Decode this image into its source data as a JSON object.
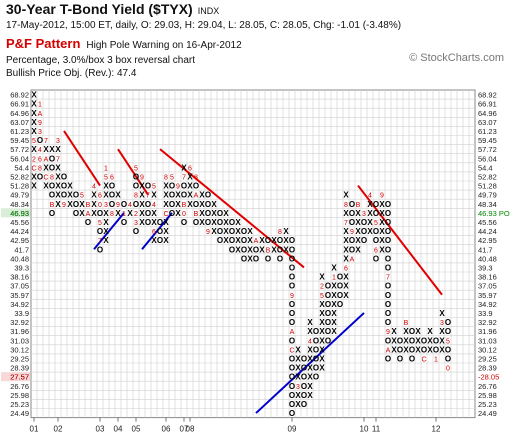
{
  "header": {
    "title": "30-Year T-Bond Yield ($TYX)",
    "symbol_type": "INDX",
    "quote": "17-May-2012, 15:00 ET, daily, O: 29.03, H: 29.04, L: 28.05, C: 28.05, Chg: -1.01 (-3.48%)",
    "pattern_label": "P&F Pattern",
    "pattern_text": "High Pole Warning on 16-Apr-2012",
    "settings": "Percentage, 3.0%/box 3 box reversal chart",
    "objective": "Bullish Price Obj. (Rev.): 47.4",
    "logo": "© StockCharts.com"
  },
  "chart_data": {
    "type": "point-and-figure",
    "box_size": "3.0%",
    "reversal": 3,
    "y_levels": [
      "68.92",
      "66.91",
      "64.96",
      "63.07",
      "61.23",
      "59.45",
      "57.72",
      "56.04",
      "54.4",
      "52.82",
      "51.28",
      "49.79",
      "48.34",
      "46.93",
      "45.56",
      "44.24",
      "42.95",
      "41.7",
      "40.48",
      "39.3",
      "38.16",
      "37.05",
      "35.97",
      "34.92",
      "33.9",
      "32.92",
      "31.96",
      "31.03",
      "30.12",
      "29.25",
      "28.39",
      "27.57",
      "26.76",
      "25.98",
      "25.23",
      "24.49"
    ],
    "y_labels_left": [
      "68.92",
      "66.91",
      "64.96",
      "63.07",
      "61.23",
      "59.45",
      "57.72",
      "56.04",
      "54.4",
      "52.82",
      "51.28",
      "49.79",
      "48.34",
      "46.93",
      "45.56",
      "44.24",
      "42.95",
      "41.7",
      "40.48",
      "39.3",
      "38.16",
      "37.05",
      "35.97",
      "34.92",
      "33.9",
      "32.92",
      "31.96",
      "31.03",
      "30.12",
      "29.25",
      "28.39",
      "27.57",
      "26.76",
      "25.98",
      "25.23",
      "24.49"
    ],
    "y_labels_right": [
      "68.92",
      "66.91",
      "64.96",
      "63.07",
      "61.23",
      "59.45",
      "57.72",
      "56.04",
      "54.4",
      "52.82",
      "51.28",
      "49.79",
      "48.34",
      "",
      "45.56",
      "44.24",
      "42.95",
      "41.7",
      "40.48",
      "39.3",
      "38.16",
      "37.05",
      "35.97",
      "34.92",
      "33.9",
      "32.92",
      "31.96",
      "31.03",
      "30.12",
      "29.25",
      "28.39",
      "",
      "26.76",
      "25.98",
      "25.23",
      "24.49"
    ],
    "right_markers": [
      {
        "label": "46.93 PO",
        "level": 13,
        "color": "#008800"
      },
      {
        "label": "-28.05",
        "level": 31,
        "color": "#cc0000"
      }
    ],
    "left_highlights": [
      {
        "level": 13,
        "color": "#008800"
      },
      {
        "level": 31,
        "color": "#cc0000"
      }
    ],
    "x_labels": [
      {
        "label": "01",
        "col": 0
      },
      {
        "label": "02",
        "col": 4
      },
      {
        "label": "03",
        "col": 11
      },
      {
        "label": "04",
        "col": 14
      },
      {
        "label": "05",
        "col": 17
      },
      {
        "label": "06",
        "col": 22
      },
      {
        "label": "07",
        "col": 25
      },
      {
        "label": "08",
        "col": 26
      },
      {
        "label": "09",
        "col": 43
      },
      {
        "label": "10",
        "col": 55
      },
      {
        "label": "11",
        "col": 57
      },
      {
        "label": "12",
        "col": 67
      }
    ],
    "columns": [
      {
        "type": "X",
        "top": 0,
        "bottom": 10,
        "marks": {
          "5": "5",
          "7": "2",
          "8": "C"
        }
      },
      {
        "type": "O",
        "top": 1,
        "bottom": 9,
        "marks": {
          "1": "1",
          "2": "A",
          "3": "9",
          "4": "3",
          "6": "4",
          "7": "6",
          "8": "8"
        }
      },
      {
        "type": "X",
        "top": 5,
        "bottom": 10,
        "marks": {
          "5": "7",
          "7": "A",
          "9": "C"
        }
      },
      {
        "type": "O",
        "top": 6,
        "bottom": 13,
        "marks": {
          "6": "X",
          "9": "8",
          "12": "B"
        }
      },
      {
        "type": "X",
        "top": 5,
        "bottom": 12,
        "marks": {
          "5": "3",
          "7": "7"
        }
      },
      {
        "type": "O",
        "top": 9,
        "bottom": 12,
        "marks": {
          "12": "9"
        }
      },
      {
        "type": "X",
        "top": 10,
        "bottom": 12,
        "marks": {}
      },
      {
        "type": "O",
        "top": 11,
        "bottom": 13,
        "marks": {}
      },
      {
        "type": "X",
        "top": 11,
        "bottom": 13,
        "marks": {
          "11": "5"
        }
      },
      {
        "type": "O",
        "top": 12,
        "bottom": 14,
        "marks": {
          "13": "A",
          "12": "B"
        }
      },
      {
        "type": "X",
        "top": 10,
        "bottom": 13,
        "marks": {
          "10": "4"
        }
      },
      {
        "type": "O",
        "top": 11,
        "bottom": 17,
        "marks": {
          "11": "6",
          "12": "0",
          "14": "5",
          "16": "7"
        }
      },
      {
        "type": "X",
        "top": 8,
        "bottom": 16,
        "marks": {
          "8": "1",
          "9": "5",
          "12": "3"
        }
      },
      {
        "type": "O",
        "top": 9,
        "bottom": 13,
        "marks": {
          "9": "6",
          "13": "8"
        }
      },
      {
        "type": "X",
        "top": 11,
        "bottom": 13,
        "marks": {
          "12": "9"
        }
      },
      {
        "type": "O",
        "top": 12,
        "bottom": 14,
        "marks": {
          "13": "1"
        }
      },
      {
        "type": "X",
        "top": 12,
        "bottom": 13,
        "marks": {
          "12": "4"
        }
      },
      {
        "type": "O",
        "top": 8,
        "bottom": 15,
        "marks": {
          "8": "5",
          "11": "8",
          "13": "2",
          "14": "3"
        }
      },
      {
        "type": "X",
        "top": 9,
        "bottom": 14,
        "marks": {
          "9": "9"
        }
      },
      {
        "type": "O",
        "top": 10,
        "bottom": 14,
        "marks": {
          "11": "7"
        }
      },
      {
        "type": "X",
        "top": 10,
        "bottom": 16,
        "marks": {
          "10": "5",
          "12": "4",
          "15": "6"
        }
      },
      {
        "type": "O",
        "top": 14,
        "bottom": 16,
        "marks": {}
      },
      {
        "type": "X",
        "top": 9,
        "bottom": 16,
        "marks": {
          "9": "8",
          "13": "C"
        }
      },
      {
        "type": "O",
        "top": 9,
        "bottom": 13,
        "marks": {
          "9": "5"
        }
      },
      {
        "type": "X",
        "top": 10,
        "bottom": 13,
        "marks": {
          "10": "9"
        }
      },
      {
        "type": "O",
        "top": 8,
        "bottom": 14,
        "marks": {
          "8": "X",
          "9": "7",
          "12": "B",
          "13": "0"
        }
      },
      {
        "type": "X",
        "top": 8,
        "bottom": 12,
        "marks": {
          "8": "6"
        }
      },
      {
        "type": "O",
        "top": 9,
        "bottom": 14,
        "marks": {
          "9": "8",
          "11": "A",
          "13": "B"
        }
      },
      {
        "type": "X",
        "top": 11,
        "bottom": 14,
        "marks": {}
      },
      {
        "type": "O",
        "top": 11,
        "bottom": 15,
        "marks": {
          "15": "9"
        }
      },
      {
        "type": "X",
        "top": 12,
        "bottom": 15,
        "marks": {}
      },
      {
        "type": "O",
        "top": 13,
        "bottom": 16,
        "marks": {}
      },
      {
        "type": "X",
        "top": 13,
        "bottom": 16,
        "marks": {}
      },
      {
        "type": "O",
        "top": 14,
        "bottom": 17,
        "marks": {}
      },
      {
        "type": "X",
        "top": 14,
        "bottom": 17,
        "marks": {}
      },
      {
        "type": "O",
        "top": 15,
        "bottom": 18,
        "marks": {}
      },
      {
        "type": "X",
        "top": 15,
        "bottom": 18,
        "marks": {}
      },
      {
        "type": "O",
        "top": 16,
        "bottom": 18,
        "marks": {
          "16": "A"
        }
      },
      {
        "type": "X",
        "top": 16,
        "bottom": 17,
        "marks": {}
      },
      {
        "type": "O",
        "top": 16,
        "bottom": 18,
        "marks": {
          "17": "B"
        }
      },
      {
        "type": "X",
        "top": 16,
        "bottom": 17,
        "marks": {}
      },
      {
        "type": "O",
        "top": 15,
        "bottom": 18,
        "marks": {
          "15": "8"
        }
      },
      {
        "type": "X",
        "top": 15,
        "bottom": 17,
        "marks": {}
      },
      {
        "type": "O",
        "top": 16,
        "bottom": 35,
        "marks": {
          "22": "9",
          "26": "A",
          "28": "C"
        }
      },
      {
        "type": "X",
        "top": 28,
        "bottom": 34,
        "marks": {
          "32": "3"
        }
      },
      {
        "type": "O",
        "top": 29,
        "bottom": 34,
        "marks": {}
      },
      {
        "type": "X",
        "top": 25,
        "bottom": 33,
        "marks": {
          "27": "4"
        }
      },
      {
        "type": "O",
        "top": 26,
        "bottom": 31,
        "marks": {}
      },
      {
        "type": "X",
        "top": 20,
        "bottom": 30,
        "marks": {
          "21": "2",
          "22": "5"
        }
      },
      {
        "type": "O",
        "top": 21,
        "bottom": 27,
        "marks": {}
      },
      {
        "type": "X",
        "top": 19,
        "bottom": 26,
        "marks": {
          "20": "1"
        }
      },
      {
        "type": "O",
        "top": 20,
        "bottom": 23,
        "marks": {}
      },
      {
        "type": "X",
        "top": 11,
        "bottom": 22,
        "marks": {
          "19": "6",
          "14": "7",
          "12": "8"
        }
      },
      {
        "type": "O",
        "top": 12,
        "bottom": 18,
        "marks": {
          "18": "A",
          "15": "9"
        }
      },
      {
        "type": "X",
        "top": 12,
        "bottom": 17,
        "marks": {
          "12": "B"
        }
      },
      {
        "type": "O",
        "top": 13,
        "bottom": 16,
        "marks": {
          "13": "3"
        }
      },
      {
        "type": "X",
        "top": 11,
        "bottom": 15,
        "marks": {
          "11": "4"
        }
      },
      {
        "type": "O",
        "top": 12,
        "bottom": 18,
        "marks": {
          "14": "5",
          "17": "6"
        }
      },
      {
        "type": "X",
        "top": 11,
        "bottom": 17,
        "marks": {
          "11": "9"
        }
      },
      {
        "type": "O",
        "top": 12,
        "bottom": 29,
        "marks": {
          "20": "7",
          "26": "9",
          "28": "A"
        }
      },
      {
        "type": "X",
        "top": 26,
        "bottom": 28,
        "marks": {}
      },
      {
        "type": "O",
        "top": 27,
        "bottom": 29,
        "marks": {}
      },
      {
        "type": "X",
        "top": 25,
        "bottom": 28,
        "marks": {
          "25": "B"
        }
      },
      {
        "type": "O",
        "top": 26,
        "bottom": 29,
        "marks": {}
      },
      {
        "type": "X",
        "top": 26,
        "bottom": 28,
        "marks": {}
      },
      {
        "type": "O",
        "top": 27,
        "bottom": 29,
        "marks": {
          "29": "C"
        }
      },
      {
        "type": "X",
        "top": 26,
        "bottom": 28,
        "marks": {}
      },
      {
        "type": "O",
        "top": 27,
        "bottom": 29,
        "marks": {
          "29": "1"
        }
      },
      {
        "type": "X",
        "top": 24,
        "bottom": 28,
        "marks": {
          "25": "3"
        }
      },
      {
        "type": "O",
        "top": 25,
        "bottom": 30,
        "marks": {
          "27": "5",
          "30": "0"
        }
      }
    ],
    "trend_lines": [
      {
        "type": "resistance",
        "color": "#e00000",
        "from": [
          5,
          4
        ],
        "to": [
          11,
          10
        ]
      },
      {
        "type": "resistance",
        "color": "#e00000",
        "from": [
          14,
          6
        ],
        "to": [
          19,
          11
        ]
      },
      {
        "type": "resistance",
        "color": "#e00000",
        "from": [
          21,
          6
        ],
        "to": [
          45,
          19
        ]
      },
      {
        "type": "resistance",
        "color": "#e00000",
        "from": [
          54,
          10
        ],
        "to": [
          68,
          22
        ]
      },
      {
        "type": "support",
        "color": "#0000cc",
        "from": [
          10,
          17
        ],
        "to": [
          15,
          13
        ]
      },
      {
        "type": "support",
        "color": "#0000cc",
        "from": [
          18,
          17
        ],
        "to": [
          23,
          13
        ]
      },
      {
        "type": "support",
        "color": "#0000cc",
        "from": [
          37,
          35
        ],
        "to": [
          55,
          24
        ]
      }
    ]
  }
}
